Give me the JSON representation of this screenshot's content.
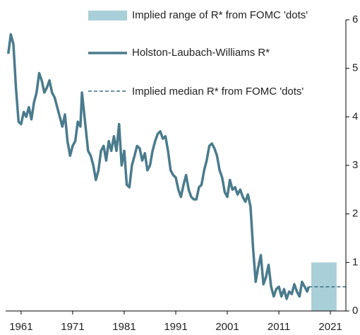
{
  "chart_data": {
    "type": "line",
    "xlim": [
      1958,
      2024
    ],
    "xticks": [
      1961,
      1971,
      1981,
      1991,
      2001,
      2011,
      2021
    ],
    "ylim": [
      0,
      6
    ],
    "yticks": [
      0,
      1,
      2,
      3,
      4,
      5,
      6
    ],
    "legend": "top-right",
    "series": [
      {
        "name": "Implied range of R* from FOMC 'dots'",
        "color": "#a9cfd8",
        "style": "range",
        "x": [
          2017.3,
          2022.2
        ],
        "low": [
          0,
          0
        ],
        "high": [
          1,
          1
        ]
      },
      {
        "name": "Holston-Laubach-Williams R*",
        "color": "#4a7b8c",
        "style": "solid",
        "x": [
          1958.5,
          1959,
          1959.5,
          1960,
          1960.5,
          1961,
          1961.5,
          1962,
          1962.5,
          1963,
          1963.5,
          1964,
          1964.5,
          1965,
          1965.5,
          1966,
          1966.5,
          1967,
          1967.5,
          1968,
          1968.5,
          1969,
          1969.5,
          1970,
          1970.5,
          1971,
          1971.5,
          1972,
          1972.5,
          1972.8,
          1973.5,
          1974,
          1974.5,
          1975,
          1975.5,
          1976,
          1976.5,
          1977,
          1977.5,
          1978,
          1978.5,
          1979,
          1979.5,
          1980,
          1980.5,
          1981,
          1981.5,
          1982,
          1982.5,
          1983,
          1983.5,
          1984,
          1984.5,
          1985,
          1985.5,
          1986,
          1986.5,
          1987,
          1987.5,
          1988,
          1988.5,
          1989,
          1989.5,
          1990,
          1990.5,
          1991,
          1991.5,
          1992,
          1992.5,
          1993,
          1993.5,
          1994,
          1994.5,
          1995,
          1995.5,
          1996,
          1996.5,
          1997,
          1997.5,
          1998,
          1998.5,
          1999,
          1999.5,
          2000,
          2000.5,
          2001,
          2001.5,
          2002,
          2002.5,
          2003,
          2003.5,
          2004,
          2004.5,
          2005,
          2005.5,
          2006,
          2006.5,
          2007,
          2007.5,
          2008,
          2008.5,
          2009,
          2009.5,
          2010,
          2010.5,
          2011,
          2011.5,
          2012,
          2012.5,
          2013,
          2013.5,
          2014,
          2014.5,
          2015,
          2015.5,
          2016,
          2016.5,
          2016.8
        ],
        "values": [
          5.3,
          5.7,
          5.5,
          4.6,
          3.9,
          3.85,
          4.1,
          4.0,
          4.2,
          3.95,
          4.3,
          4.5,
          4.9,
          4.75,
          4.5,
          4.6,
          4.75,
          4.5,
          4.4,
          4.2,
          4.0,
          3.8,
          4.05,
          3.5,
          3.2,
          3.4,
          3.5,
          3.9,
          3.8,
          4.5,
          3.8,
          3.3,
          3.2,
          3.0,
          2.7,
          2.9,
          3.3,
          3.4,
          3.1,
          3.5,
          3.3,
          3.6,
          3.3,
          3.85,
          3.0,
          3.3,
          2.6,
          2.55,
          3.0,
          3.2,
          3.4,
          3.35,
          3.1,
          3.25,
          2.9,
          3.0,
          3.3,
          3.5,
          3.65,
          3.7,
          3.55,
          3.6,
          3.3,
          2.9,
          2.8,
          2.75,
          2.5,
          2.35,
          2.6,
          2.8,
          2.5,
          2.35,
          2.3,
          2.3,
          2.55,
          2.6,
          2.9,
          3.1,
          3.4,
          3.45,
          3.35,
          3.2,
          2.9,
          2.75,
          2.45,
          2.35,
          2.7,
          2.5,
          2.55,
          2.4,
          2.5,
          2.35,
          2.25,
          2.4,
          2.15,
          1.3,
          0.6,
          0.9,
          1.15,
          0.55,
          0.7,
          0.95,
          0.5,
          0.3,
          0.45,
          0.5,
          0.3,
          0.45,
          0.25,
          0.4,
          0.35,
          0.55,
          0.4,
          0.3,
          0.6,
          0.5,
          0.4,
          0.5
        ]
      },
      {
        "name": "Implied median R* from FOMC 'dots'",
        "color": "#3d6e80",
        "style": "dashed",
        "x": [
          2016.8,
          2024
        ],
        "values": [
          0.5,
          0.5
        ]
      }
    ]
  }
}
